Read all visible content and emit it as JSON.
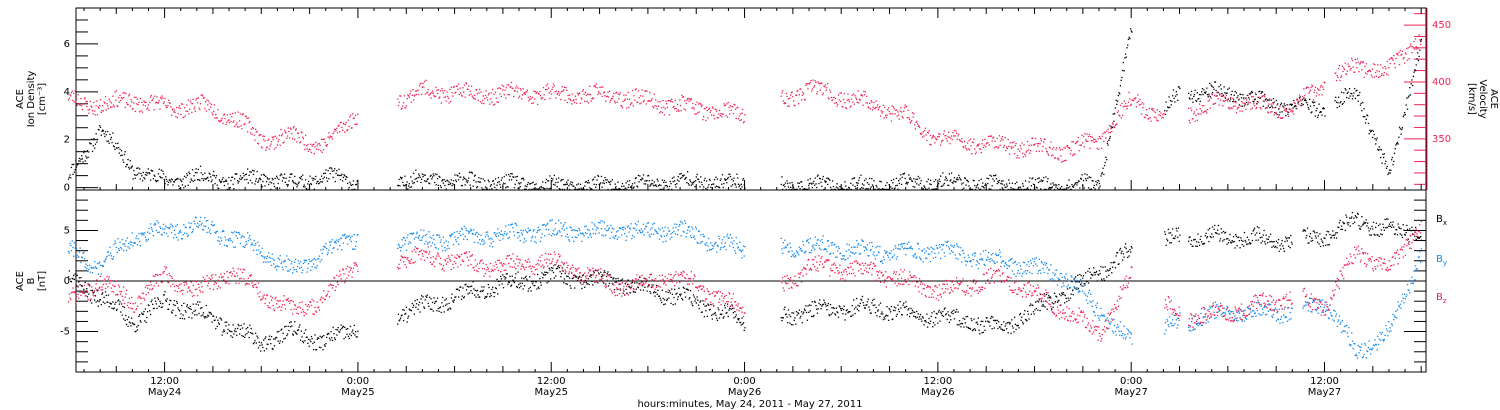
{
  "colors": {
    "black": "#000000",
    "red": "#ee2255",
    "blue": "#1188ee"
  },
  "chart_data": [
    {
      "type": "scatter",
      "panel": "top",
      "ylabel_left": [
        "ACE",
        "Ion Density",
        "[cm⁻³]"
      ],
      "ylabel_right": [
        "ACE",
        "Velocity",
        "[km/s]"
      ],
      "ylim_left": [
        -0.1,
        7.5
      ],
      "ylim_right": [
        305,
        465
      ],
      "yticks_left": [
        "0",
        "2",
        "4",
        "6"
      ],
      "yticks_right": [
        "350",
        "400",
        "450"
      ],
      "grid": false,
      "series": [
        {
          "axis": "left",
          "color": "black",
          "t": [
            6,
            8,
            10,
            12,
            14,
            16,
            18,
            20,
            22,
            24,
            28,
            32,
            36,
            40,
            44,
            48,
            52,
            56,
            60,
            64,
            68,
            70,
            72,
            74,
            75,
            78,
            80,
            82,
            84,
            86,
            88,
            90
          ],
          "values": [
            0.4,
            2.5,
            0.8,
            0.3,
            0.5,
            0.3,
            0.4,
            0.2,
            0.5,
            0.2,
            0.4,
            0.2,
            0.1,
            0.1,
            0.3,
            0.2,
            0.1,
            0.1,
            0.3,
            0.1,
            0.1,
            0.2,
            6.5,
            3.2,
            4.0,
            4.0,
            3.6,
            3.4,
            3.3,
            4.0,
            0.5,
            6.2
          ],
          "gaps_after": [
            24,
            48,
            72,
            75,
            84
          ]
        },
        {
          "axis": "right",
          "color": "red",
          "t": [
            6,
            8,
            10,
            12,
            14,
            16,
            18,
            20,
            22,
            24,
            28,
            32,
            36,
            40,
            44,
            48,
            52,
            56,
            58,
            60,
            64,
            68,
            70,
            72,
            74,
            75,
            78,
            80,
            82,
            84,
            86,
            88,
            90
          ],
          "values": [
            385,
            380,
            385,
            378,
            380,
            372,
            350,
            352,
            345,
            375,
            392,
            390,
            390,
            388,
            380,
            370,
            395,
            380,
            370,
            350,
            345,
            340,
            350,
            385,
            370,
            371,
            385,
            380,
            376,
            400,
            415,
            410,
            442
          ],
          "gaps_after": [
            24,
            48,
            74,
            75,
            84
          ]
        }
      ]
    },
    {
      "type": "scatter",
      "panel": "bottom",
      "ylabel": [
        "ACE",
        "B",
        "[nT]"
      ],
      "ylim": [
        -9,
        9
      ],
      "yticks": [
        "5",
        "0",
        "-5"
      ],
      "zero_line": true,
      "grid": false,
      "series": [
        {
          "name": "Bx",
          "label": "B",
          "subscript": "x",
          "color": "black",
          "t": [
            6,
            8,
            10,
            12,
            14,
            16,
            18,
            20,
            22,
            24,
            28,
            32,
            36,
            40,
            44,
            48,
            52,
            56,
            60,
            64,
            68,
            72,
            75,
            78,
            82,
            84,
            86,
            88,
            90
          ],
          "values": [
            0.5,
            -1.5,
            -4.0,
            -2.0,
            -3.0,
            -4.5,
            -6.0,
            -5.0,
            -6.0,
            -4.5,
            -2.5,
            -0.5,
            0.5,
            0.0,
            -1.5,
            -4.0,
            -3.0,
            -2.5,
            -3.5,
            -4.5,
            -1.0,
            3.0,
            4.5,
            4.5,
            4.0,
            4.5,
            6.0,
            5.0,
            5.0
          ],
          "gaps_after": [
            24,
            48,
            72,
            75,
            82
          ]
        },
        {
          "name": "By",
          "label": "B",
          "subscript": "y",
          "color": "blue",
          "t": [
            6,
            8,
            10,
            12,
            14,
            16,
            18,
            20,
            22,
            24,
            28,
            32,
            36,
            40,
            44,
            48,
            52,
            56,
            60,
            64,
            68,
            70,
            72,
            75,
            78,
            82,
            84,
            86,
            88,
            90
          ],
          "values": [
            3.0,
            1.5,
            4.5,
            5.0,
            5.5,
            4.5,
            3.0,
            1.0,
            3.0,
            4.5,
            4.0,
            4.5,
            5.0,
            5.0,
            5.0,
            3.0,
            3.5,
            3.0,
            3.0,
            2.0,
            0.5,
            -3.0,
            -6.0,
            -4.0,
            -3.0,
            -3.0,
            -2.0,
            -7.0,
            -5.0,
            3.0
          ],
          "gaps_after": [
            24,
            48,
            72,
            75,
            82
          ]
        },
        {
          "name": "Bz",
          "label": "B",
          "subscript": "z",
          "color": "red",
          "t": [
            6,
            8,
            10,
            12,
            14,
            16,
            18,
            20,
            22,
            24,
            28,
            32,
            36,
            40,
            44,
            48,
            52,
            56,
            60,
            64,
            68,
            70,
            72,
            75,
            78,
            82,
            84,
            86,
            88,
            90
          ],
          "values": [
            -2.0,
            0.0,
            -2.0,
            0.5,
            -1.0,
            1.0,
            -1.0,
            -3.0,
            -1.5,
            2.0,
            2.5,
            1.5,
            2.0,
            -0.5,
            0.5,
            -3.0,
            1.5,
            1.0,
            -1.0,
            0.5,
            -3.0,
            -5.0,
            0.5,
            -3.5,
            -3.0,
            -1.5,
            -2.5,
            3.0,
            1.0,
            6.0
          ],
          "gaps_after": [
            24,
            48,
            72,
            75,
            82
          ]
        }
      ]
    }
  ],
  "xaxis": {
    "label": "hours:minutes, May 24, 2011 - May 27, 2011",
    "xlim_hours": [
      6.5,
      90.3
    ],
    "ticks": [
      {
        "h": 12,
        "time": "12:00",
        "date": "May24"
      },
      {
        "h": 24,
        "time": "0:00",
        "date": "May25"
      },
      {
        "h": 36,
        "time": "12:00",
        "date": "May25"
      },
      {
        "h": 48,
        "time": "0:00",
        "date": "May26"
      },
      {
        "h": 60,
        "time": "12:00",
        "date": "May26"
      },
      {
        "h": 72,
        "time": "0:00",
        "date": "May27"
      },
      {
        "h": 84,
        "time": "12:00",
        "date": "May27"
      }
    ]
  }
}
